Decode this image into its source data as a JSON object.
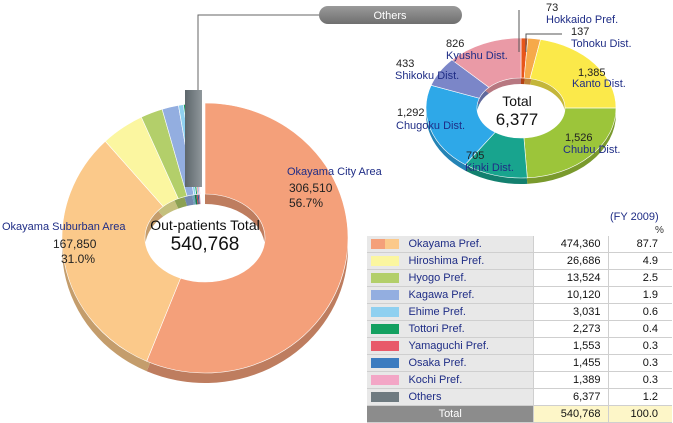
{
  "chart_data": [
    {
      "type": "pie",
      "variant": "donut",
      "title": "Out-patients Total",
      "total": "540,768",
      "slices": [
        {
          "label": "Okayama City Area",
          "value": "306,510",
          "pct": "56.7%",
          "v": 306510,
          "color": "#f4a07a"
        },
        {
          "label": "Okayama Suburban Area",
          "value": "167,850",
          "pct": "31.0%",
          "v": 167850,
          "color": "#fbc98a"
        },
        {
          "label": "Hiroshima Pref.",
          "v": 26686,
          "color": "#fbf6a0"
        },
        {
          "label": "Hyogo Pref.",
          "v": 13524,
          "color": "#b3cf6a"
        },
        {
          "label": "Kagawa Pref.",
          "v": 10120,
          "color": "#93aee0"
        },
        {
          "label": "Ehime Pref.",
          "v": 3031,
          "color": "#8fd0f0"
        },
        {
          "label": "Tottori Pref.",
          "v": 2273,
          "color": "#14a060"
        },
        {
          "label": "Yamaguchi Pref.",
          "v": 1553,
          "color": "#e85a6a"
        },
        {
          "label": "Osaka Pref.",
          "v": 1455,
          "color": "#3c7cc0"
        },
        {
          "label": "Kochi Pref.",
          "v": 1389,
          "color": "#f3a6c6"
        },
        {
          "label": "Others",
          "v": 6377,
          "color": "#6e7a80"
        }
      ],
      "others_callout": "Others"
    },
    {
      "type": "pie",
      "variant": "donut",
      "title": "Total",
      "total": "6,377",
      "slices": [
        {
          "label": "Hokkaido Pref.",
          "value": "73",
          "v": 73,
          "color": "#e8551a"
        },
        {
          "label": "Tohoku Dist.",
          "value": "137",
          "v": 137,
          "color": "#f6a94a"
        },
        {
          "label": "Kanto Dist.",
          "value": "1,385",
          "v": 1385,
          "color": "#fbe94a"
        },
        {
          "label": "Chubu Dist.",
          "value": "1,526",
          "v": 1526,
          "color": "#9cc53a"
        },
        {
          "label": "Kinki Dist.",
          "value": "705",
          "v": 705,
          "color": "#18a48e"
        },
        {
          "label": "Chugoku Dist.",
          "value": "1,292",
          "v": 1292,
          "color": "#2ea8e8"
        },
        {
          "label": "Shikoku Dist.",
          "value": "433",
          "v": 433,
          "color": "#7b86c8"
        },
        {
          "label": "Kyushu Dist.",
          "value": "826",
          "v": 826,
          "color": "#ea9aa6"
        }
      ]
    },
    {
      "type": "table",
      "title": "(FY 2009)",
      "unit_header": "%",
      "rows": [
        {
          "name": "Okayama Pref.",
          "value": "474,360",
          "pct": "87.7",
          "color": "#f4a07a",
          "color2": "#fbc98a"
        },
        {
          "name": "Hiroshima Pref.",
          "value": "26,686",
          "pct": "4.9",
          "color": "#fbf6a0"
        },
        {
          "name": "Hyogo Pref.",
          "value": "13,524",
          "pct": "2.5",
          "color": "#b3cf6a"
        },
        {
          "name": "Kagawa Pref.",
          "value": "10,120",
          "pct": "1.9",
          "color": "#93aee0"
        },
        {
          "name": "Ehime Pref.",
          "value": "3,031",
          "pct": "0.6",
          "color": "#8fd0f0"
        },
        {
          "name": "Tottori Pref.",
          "value": "2,273",
          "pct": "0.4",
          "color": "#14a060"
        },
        {
          "name": "Yamaguchi Pref.",
          "value": "1,553",
          "pct": "0.3",
          "color": "#e85a6a"
        },
        {
          "name": "Osaka Pref.",
          "value": "1,455",
          "pct": "0.3",
          "color": "#3c7cc0"
        },
        {
          "name": "Kochi Pref.",
          "value": "1,389",
          "pct": "0.3",
          "color": "#f3a6c6"
        },
        {
          "name": "Others",
          "value": "6,377",
          "pct": "1.2",
          "color": "#6e7a80"
        }
      ],
      "total_row": {
        "name": "Total",
        "value": "540,768",
        "pct": "100.0"
      }
    }
  ]
}
